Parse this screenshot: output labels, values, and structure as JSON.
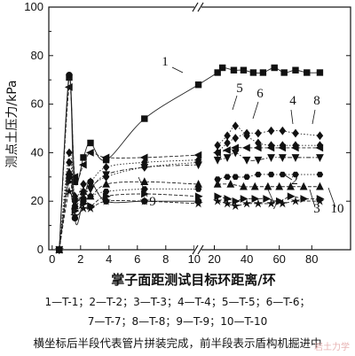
{
  "chart_data": {
    "type": "line",
    "ylabel": "测点土压力/kPa",
    "xlabel": "掌子面距测试目标环距离/环",
    "ylim": [
      0,
      100
    ],
    "yticks": [
      0,
      20,
      40,
      60,
      80,
      100
    ],
    "xticks_left": [
      0,
      2,
      4,
      6,
      8,
      10
    ],
    "xticks_right": [
      20,
      40,
      60,
      80
    ],
    "x_break": "10 | 20",
    "grid": false,
    "series": [
      {
        "name": "1",
        "marker": "square",
        "style": "solid",
        "x": [
          0.5,
          1.2,
          1.6,
          2.2,
          2.7,
          3.8,
          6.5,
          10.2,
          22,
          25,
          32,
          38,
          44,
          50,
          57,
          63,
          70,
          77,
          85
        ],
        "y": [
          0,
          71,
          28,
          38,
          44,
          37,
          54,
          68,
          73,
          75,
          74,
          74,
          73,
          73,
          75,
          73,
          74,
          73,
          73
        ]
      },
      {
        "name": "2",
        "marker": "triangle-right",
        "style": "dashed",
        "x": [
          0.5,
          1.2,
          1.6,
          2.2,
          2.7,
          3.8,
          6.5,
          10.2,
          22,
          28,
          33,
          38,
          45,
          52,
          60,
          67,
          75,
          85
        ],
        "y": [
          0,
          28,
          16,
          19,
          18,
          22,
          23,
          22,
          22,
          21,
          20,
          21,
          21,
          21,
          20,
          22,
          21,
          21
        ]
      },
      {
        "name": "3",
        "marker": "triangle-up",
        "style": "dashed",
        "x": [
          0.5,
          1.2,
          1.6,
          2.2,
          2.7,
          3.8,
          6.5,
          10.2,
          22,
          30,
          38,
          45,
          53,
          60,
          67,
          75,
          85
        ],
        "y": [
          0,
          32,
          18,
          24,
          22,
          27,
          28,
          27,
          27,
          27,
          26,
          26,
          26,
          26,
          26,
          26,
          26
        ]
      },
      {
        "name": "4",
        "marker": "diamond",
        "style": "dotted",
        "x": [
          0.5,
          1.2,
          1.6,
          2.2,
          2.7,
          3.8,
          6.5,
          10.2,
          22,
          28,
          33,
          40,
          47,
          55,
          62,
          70,
          85
        ],
        "y": [
          0,
          40,
          22,
          27,
          28,
          34,
          36,
          37,
          40,
          44,
          46,
          48,
          48,
          49,
          49,
          48,
          47
        ]
      },
      {
        "name": "5",
        "marker": "diamond",
        "style": "dotted",
        "x": [
          0.5,
          1.2,
          1.6,
          2.2,
          2.7,
          3.8,
          6.5,
          10.2,
          22,
          28,
          33,
          40,
          47,
          55,
          62,
          70,
          85
        ],
        "y": [
          0,
          36,
          20,
          24,
          26,
          30,
          34,
          36,
          43,
          47,
          51,
          47,
          44,
          43,
          43,
          43,
          43
        ]
      },
      {
        "name": "6",
        "marker": "triangle-down",
        "style": "dashdot",
        "x": [
          0.5,
          1.2,
          1.6,
          2.2,
          2.7,
          3.8,
          6.5,
          10.2,
          22,
          28,
          33,
          40,
          47,
          55,
          62,
          70,
          85
        ],
        "y": [
          0,
          30,
          20,
          23,
          25,
          31,
          34,
          35,
          37,
          38,
          40,
          37,
          37,
          38,
          38,
          38,
          38
        ]
      },
      {
        "name": "7",
        "marker": "star",
        "style": "dashed",
        "x": [
          0.5,
          1.2,
          1.6,
          2.2,
          2.7,
          3.8,
          6.5,
          10.2,
          22,
          28,
          33,
          40,
          47,
          55,
          62,
          70,
          85
        ],
        "y": [
          0,
          24,
          14,
          17,
          17,
          20,
          20,
          19,
          20,
          19,
          18,
          19,
          19,
          19,
          19,
          20,
          20
        ]
      },
      {
        "name": "8",
        "marker": "triangle-left",
        "style": "dashed",
        "x": [
          0.5,
          1.2,
          1.6,
          2.2,
          2.7,
          3.8,
          6.5,
          10.2,
          22,
          28,
          33,
          40,
          47,
          55,
          62,
          70,
          85
        ],
        "y": [
          0,
          67,
          30,
          35,
          40,
          38,
          38,
          39,
          40,
          41,
          42,
          42,
          42,
          42,
          42,
          42,
          42
        ]
      },
      {
        "name": "9",
        "marker": "circle",
        "style": "solid",
        "x": [
          0.5,
          1.2,
          1.6,
          2.2,
          2.7,
          3.8,
          6.5,
          10.2
        ],
        "y": [
          0,
          72,
          13,
          21,
          28,
          20,
          20,
          20
        ]
      },
      {
        "name": "10",
        "marker": "hexagon",
        "style": "dotted",
        "x": [
          0.5,
          1.2,
          1.6,
          2.2,
          2.7,
          3.8,
          6.5,
          10.2,
          22,
          28,
          33,
          40,
          47,
          55,
          62,
          70,
          85
        ],
        "y": [
          0,
          30,
          18,
          20,
          22,
          24,
          25,
          25,
          29,
          30,
          30,
          30,
          31,
          31,
          31,
          31,
          31
        ]
      }
    ],
    "annotations": [
      "1",
      "2",
      "3",
      "4",
      "5",
      "6",
      "7",
      "8",
      "9",
      "10"
    ]
  },
  "legend": {
    "row1": "1—T-1；2—T-2；3—T-3；4—T-4；5—T-5；6—T-6；",
    "row2": "7—T-7；8—T-8；9—T-9；10—T-10"
  },
  "caption": "横坐标后半段代表管片拼装完成，前半段表示盾构机掘进中",
  "watermark": "岩土力学"
}
